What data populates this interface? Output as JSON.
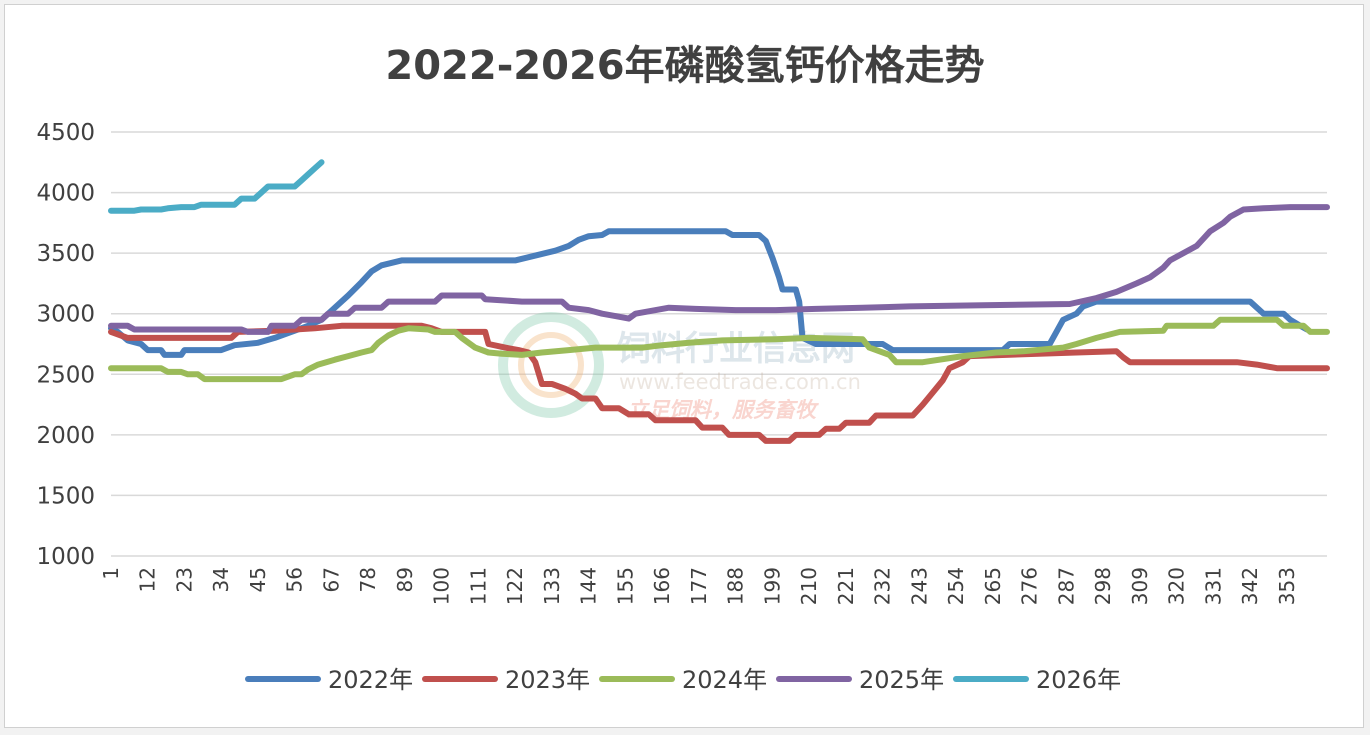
{
  "chart_data": {
    "type": "line",
    "title": "2022-2026年磷酸氢钙价格走势",
    "xlabel": "",
    "ylabel": "",
    "ylim": [
      1000,
      4500
    ],
    "yticks": [
      "1000",
      "1500",
      "2000",
      "2500",
      "3000",
      "3500",
      "4000",
      "4500"
    ],
    "xlim": [
      1,
      365
    ],
    "xticks": [
      "1",
      "12",
      "23",
      "34",
      "45",
      "56",
      "67",
      "78",
      "89",
      "100",
      "111",
      "122",
      "133",
      "144",
      "155",
      "166",
      "177",
      "188",
      "199",
      "210",
      "221",
      "232",
      "243",
      "254",
      "265",
      "276",
      "287",
      "298",
      "309",
      "320",
      "331",
      "342",
      "353"
    ],
    "grid": "horizontal",
    "legend_position": "bottom",
    "watermark": {
      "line1": "饲料行业信息网",
      "line2": "www.feedtrade.com.cn",
      "line3": "立足饲料，服务畜牧"
    },
    "series": [
      {
        "name": "2022年",
        "color": "#4a7ebb",
        "points": [
          [
            1,
            2880
          ],
          [
            3,
            2850
          ],
          [
            6,
            2780
          ],
          [
            10,
            2750
          ],
          [
            12,
            2700
          ],
          [
            16,
            2700
          ],
          [
            17,
            2660
          ],
          [
            22,
            2660
          ],
          [
            23,
            2700
          ],
          [
            34,
            2700
          ],
          [
            38,
            2740
          ],
          [
            45,
            2760
          ],
          [
            50,
            2800
          ],
          [
            56,
            2860
          ],
          [
            60,
            2900
          ],
          [
            64,
            2950
          ],
          [
            68,
            3050
          ],
          [
            72,
            3150
          ],
          [
            76,
            3260
          ],
          [
            79,
            3350
          ],
          [
            82,
            3400
          ],
          [
            88,
            3440
          ],
          [
            100,
            3440
          ],
          [
            122,
            3440
          ],
          [
            128,
            3480
          ],
          [
            134,
            3520
          ],
          [
            138,
            3560
          ],
          [
            141,
            3610
          ],
          [
            144,
            3640
          ],
          [
            148,
            3650
          ],
          [
            150,
            3680
          ],
          [
            185,
            3680
          ],
          [
            187,
            3650
          ],
          [
            195,
            3650
          ],
          [
            197,
            3600
          ],
          [
            199,
            3460
          ],
          [
            201,
            3300
          ],
          [
            202,
            3200
          ],
          [
            206,
            3200
          ],
          [
            207,
            3100
          ],
          [
            208,
            2800
          ],
          [
            212,
            2750
          ],
          [
            232,
            2750
          ],
          [
            235,
            2700
          ],
          [
            268,
            2700
          ],
          [
            270,
            2750
          ],
          [
            282,
            2750
          ],
          [
            284,
            2850
          ],
          [
            286,
            2950
          ],
          [
            290,
            3000
          ],
          [
            292,
            3060
          ],
          [
            296,
            3100
          ],
          [
            342,
            3100
          ],
          [
            346,
            3000
          ],
          [
            352,
            3000
          ],
          [
            354,
            2950
          ],
          [
            357,
            2900
          ],
          [
            359,
            2870
          ]
        ]
      },
      {
        "name": "2023年",
        "color": "#c0504d",
        "points": [
          [
            1,
            2850
          ],
          [
            4,
            2820
          ],
          [
            6,
            2800
          ],
          [
            37,
            2800
          ],
          [
            39,
            2850
          ],
          [
            50,
            2860
          ],
          [
            62,
            2880
          ],
          [
            70,
            2900
          ],
          [
            94,
            2900
          ],
          [
            97,
            2880
          ],
          [
            100,
            2850
          ],
          [
            113,
            2850
          ],
          [
            114,
            2750
          ],
          [
            119,
            2720
          ],
          [
            123,
            2700
          ],
          [
            126,
            2680
          ],
          [
            128,
            2600
          ],
          [
            130,
            2420
          ],
          [
            133,
            2420
          ],
          [
            137,
            2380
          ],
          [
            140,
            2340
          ],
          [
            142,
            2300
          ],
          [
            146,
            2300
          ],
          [
            148,
            2220
          ],
          [
            153,
            2220
          ],
          [
            156,
            2170
          ],
          [
            162,
            2170
          ],
          [
            164,
            2120
          ],
          [
            176,
            2120
          ],
          [
            178,
            2060
          ],
          [
            184,
            2060
          ],
          [
            186,
            2000
          ],
          [
            195,
            2000
          ],
          [
            197,
            1950
          ],
          [
            204,
            1950
          ],
          [
            206,
            2000
          ],
          [
            213,
            2000
          ],
          [
            215,
            2050
          ],
          [
            219,
            2050
          ],
          [
            221,
            2100
          ],
          [
            228,
            2100
          ],
          [
            230,
            2160
          ],
          [
            241,
            2160
          ],
          [
            244,
            2250
          ],
          [
            247,
            2350
          ],
          [
            250,
            2450
          ],
          [
            252,
            2550
          ],
          [
            256,
            2600
          ],
          [
            258,
            2650
          ],
          [
            290,
            2680
          ],
          [
            302,
            2690
          ],
          [
            304,
            2640
          ],
          [
            306,
            2600
          ],
          [
            338,
            2600
          ],
          [
            344,
            2580
          ],
          [
            348,
            2560
          ],
          [
            350,
            2550
          ],
          [
            365,
            2550
          ]
        ]
      },
      {
        "name": "2024年",
        "color": "#9bbb59",
        "points": [
          [
            1,
            2550
          ],
          [
            16,
            2550
          ],
          [
            18,
            2520
          ],
          [
            22,
            2520
          ],
          [
            24,
            2500
          ],
          [
            27,
            2500
          ],
          [
            29,
            2460
          ],
          [
            52,
            2460
          ],
          [
            56,
            2500
          ],
          [
            58,
            2500
          ],
          [
            60,
            2540
          ],
          [
            63,
            2580
          ],
          [
            68,
            2620
          ],
          [
            72,
            2650
          ],
          [
            76,
            2680
          ],
          [
            79,
            2700
          ],
          [
            81,
            2760
          ],
          [
            84,
            2820
          ],
          [
            87,
            2860
          ],
          [
            90,
            2880
          ],
          [
            96,
            2870
          ],
          [
            98,
            2850
          ],
          [
            104,
            2850
          ],
          [
            106,
            2800
          ],
          [
            110,
            2720
          ],
          [
            114,
            2680
          ],
          [
            118,
            2670
          ],
          [
            124,
            2660
          ],
          [
            130,
            2680
          ],
          [
            138,
            2700
          ],
          [
            146,
            2720
          ],
          [
            160,
            2720
          ],
          [
            166,
            2740
          ],
          [
            174,
            2760
          ],
          [
            184,
            2780
          ],
          [
            200,
            2790
          ],
          [
            210,
            2800
          ],
          [
            226,
            2790
          ],
          [
            228,
            2720
          ],
          [
            234,
            2660
          ],
          [
            236,
            2600
          ],
          [
            244,
            2600
          ],
          [
            256,
            2650
          ],
          [
            266,
            2680
          ],
          [
            274,
            2690
          ],
          [
            286,
            2720
          ],
          [
            290,
            2750
          ],
          [
            296,
            2800
          ],
          [
            303,
            2850
          ],
          [
            316,
            2860
          ],
          [
            317,
            2900
          ],
          [
            331,
            2900
          ],
          [
            333,
            2950
          ],
          [
            350,
            2950
          ],
          [
            352,
            2900
          ],
          [
            358,
            2900
          ],
          [
            360,
            2850
          ],
          [
            365,
            2850
          ]
        ]
      },
      {
        "name": "2025年",
        "color": "#8064a2",
        "points": [
          [
            1,
            2900
          ],
          [
            6,
            2900
          ],
          [
            8,
            2870
          ],
          [
            40,
            2870
          ],
          [
            42,
            2850
          ],
          [
            48,
            2850
          ],
          [
            49,
            2900
          ],
          [
            56,
            2900
          ],
          [
            58,
            2950
          ],
          [
            64,
            2950
          ],
          [
            66,
            3000
          ],
          [
            72,
            3000
          ],
          [
            74,
            3050
          ],
          [
            82,
            3050
          ],
          [
            84,
            3100
          ],
          [
            98,
            3100
          ],
          [
            100,
            3150
          ],
          [
            112,
            3150
          ],
          [
            113,
            3120
          ],
          [
            124,
            3100
          ],
          [
            136,
            3100
          ],
          [
            138,
            3050
          ],
          [
            144,
            3030
          ],
          [
            148,
            3000
          ],
          [
            152,
            2980
          ],
          [
            156,
            2960
          ],
          [
            158,
            3000
          ],
          [
            162,
            3020
          ],
          [
            168,
            3050
          ],
          [
            176,
            3040
          ],
          [
            188,
            3030
          ],
          [
            200,
            3030
          ],
          [
            212,
            3040
          ],
          [
            226,
            3050
          ],
          [
            240,
            3060
          ],
          [
            262,
            3070
          ],
          [
            288,
            3080
          ],
          [
            296,
            3130
          ],
          [
            302,
            3180
          ],
          [
            308,
            3250
          ],
          [
            312,
            3300
          ],
          [
            316,
            3380
          ],
          [
            318,
            3440
          ],
          [
            322,
            3500
          ],
          [
            326,
            3560
          ],
          [
            328,
            3620
          ],
          [
            330,
            3680
          ],
          [
            334,
            3750
          ],
          [
            336,
            3800
          ],
          [
            340,
            3860
          ],
          [
            346,
            3870
          ],
          [
            354,
            3880
          ],
          [
            365,
            3880
          ]
        ]
      },
      {
        "name": "2026年",
        "color": "#4bacc6",
        "points": [
          [
            1,
            3850
          ],
          [
            8,
            3850
          ],
          [
            10,
            3860
          ],
          [
            16,
            3860
          ],
          [
            18,
            3870
          ],
          [
            22,
            3880
          ],
          [
            26,
            3880
          ],
          [
            28,
            3900
          ],
          [
            38,
            3900
          ],
          [
            40,
            3950
          ],
          [
            44,
            3950
          ],
          [
            46,
            4000
          ],
          [
            48,
            4050
          ],
          [
            56,
            4050
          ],
          [
            58,
            4100
          ],
          [
            60,
            4150
          ],
          [
            62,
            4200
          ],
          [
            64,
            4250
          ]
        ]
      }
    ]
  }
}
